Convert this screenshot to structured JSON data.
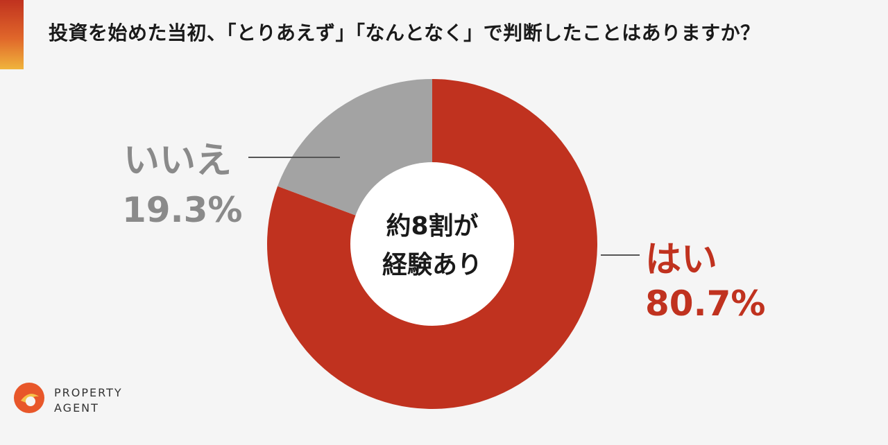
{
  "title": "投資を始めた当初、「とりあえず」「なんとなく」で判断したことはありますか？",
  "center_label": [
    "約8割が",
    "経験あり"
  ],
  "logo": {
    "line1": "PROPERTY",
    "line2": "AGENT"
  },
  "colors": {
    "yes": "#c0321f",
    "no": "#a3a3a3",
    "leader": "#555555",
    "hole": "#ffffff"
  },
  "chart_data": {
    "type": "pie",
    "donut": true,
    "categories": [
      "はい",
      "いいえ"
    ],
    "values": [
      80.7,
      19.3
    ],
    "value_labels": [
      "80.7%",
      "19.3%"
    ],
    "title": "投資を始めた当初、「とりあえず」「なんとなく」で判断したことはありますか？",
    "legend": "none"
  }
}
